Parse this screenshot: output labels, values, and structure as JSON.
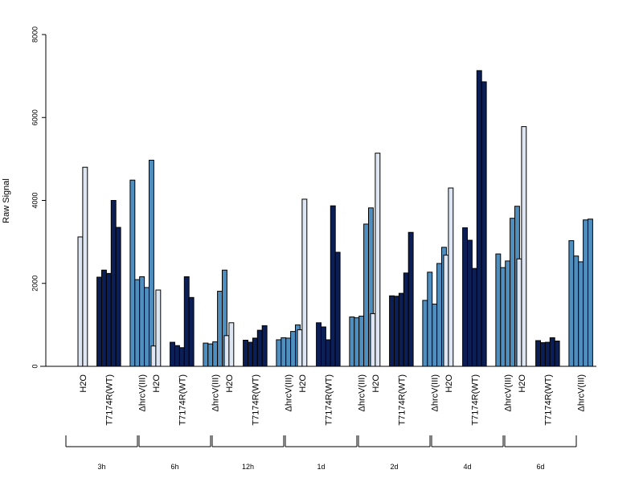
{
  "chart_data": {
    "type": "bar",
    "title": "",
    "xlabel": "",
    "ylabel": "Raw Signal",
    "ylim": [
      0,
      8000
    ],
    "y_ticks": [
      0,
      2000,
      4000,
      6000,
      8000
    ],
    "grid": false,
    "legend": "none",
    "condition_labels": [
      "H2O",
      "T7174R(WT)",
      "ΔhrcV(III)"
    ],
    "condition_colors": [
      "#dde6f2",
      "#0b1e55",
      "#4f8fc0"
    ],
    "groups": [
      {
        "label": "3h",
        "series": [
          [
            3120,
            4800
          ],
          [
            2150,
            2320,
            2240,
            4000,
            3350
          ],
          [
            4490,
            2090,
            2160,
            1900,
            4970
          ]
        ]
      },
      {
        "label": "6h",
        "series": [
          [
            490,
            1840
          ],
          [
            580,
            500,
            450,
            2160,
            1660
          ],
          [
            560,
            540,
            590,
            1810,
            2320
          ]
        ]
      },
      {
        "label": "12h",
        "series": [
          [
            740,
            1050
          ],
          [
            630,
            580,
            680,
            870,
            980
          ],
          [
            640,
            690,
            680,
            840,
            1000
          ]
        ]
      },
      {
        "label": "1d",
        "series": [
          [
            880,
            4030
          ],
          [
            1050,
            950,
            640,
            3870,
            2750
          ],
          [
            1190,
            1170,
            1210,
            3430,
            3820
          ]
        ]
      },
      {
        "label": "2d",
        "series": [
          [
            1270,
            5140
          ],
          [
            1700,
            1690,
            1760,
            2250,
            3230
          ],
          [
            1590,
            2270,
            1500,
            2480,
            2870
          ]
        ]
      },
      {
        "label": "4d",
        "series": [
          [
            2680,
            4300
          ],
          [
            3340,
            3040,
            2360,
            7130,
            6860
          ],
          [
            2710,
            2380,
            2540,
            3570,
            3860
          ]
        ]
      },
      {
        "label": "6d",
        "series": [
          [
            2590,
            5780
          ],
          [
            620,
            570,
            580,
            690,
            610
          ],
          [
            3030,
            2660,
            2520,
            3530,
            3550
          ]
        ]
      }
    ]
  }
}
